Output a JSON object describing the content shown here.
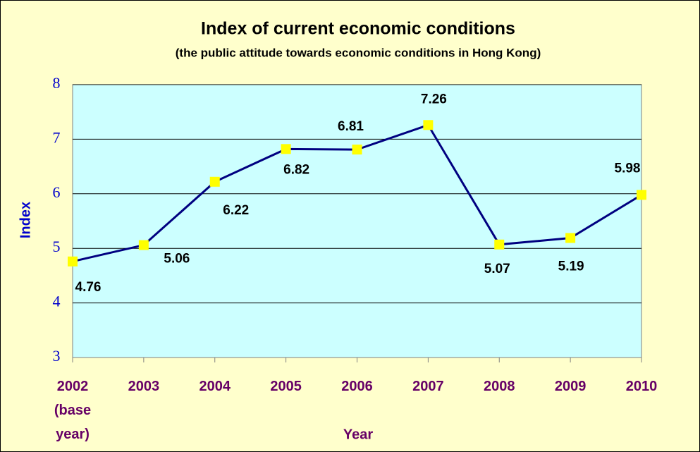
{
  "chart_data": {
    "type": "line",
    "title": "Index of current economic conditions",
    "subtitle": "(the public attitude towards economic conditions in Hong Kong)",
    "x_label": "Year",
    "y_label": "Index",
    "categories": [
      "2002\n(base\nyear)",
      "2003",
      "2004",
      "2005",
      "2006",
      "2007",
      "2008",
      "2009",
      "2010"
    ],
    "series": [
      {
        "name": "Index",
        "color": "#000080",
        "marker_color": "#FFFF00",
        "values": [
          4.76,
          5.06,
          6.22,
          6.82,
          6.81,
          7.26,
          5.07,
          5.19,
          5.98
        ]
      }
    ],
    "ylim": [
      3,
      8
    ],
    "yticks": [
      3,
      4,
      5,
      6,
      7,
      8
    ],
    "grid": true
  }
}
